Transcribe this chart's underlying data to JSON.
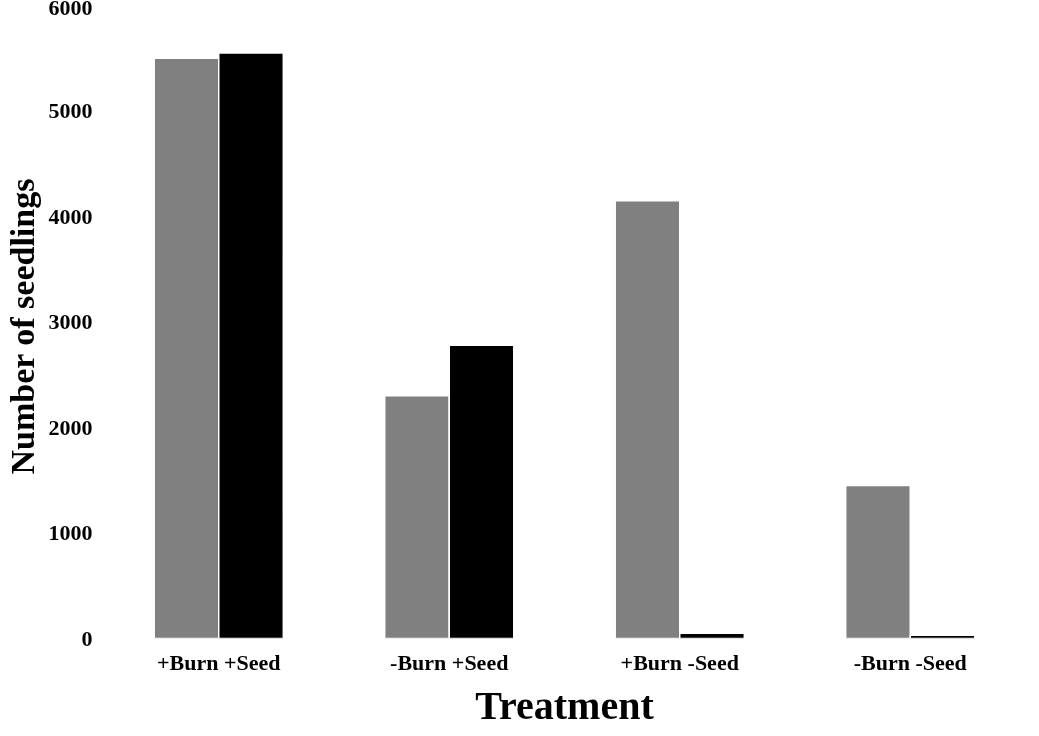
{
  "chart_data": {
    "type": "bar",
    "xlabel": "Treatment",
    "ylabel": "Number of  seedlings",
    "categories": [
      "+Burn +Seed",
      "-Burn +Seed",
      "+Burn -Seed",
      "-Burn -Seed"
    ],
    "series": [
      {
        "color": "#808080",
        "values": [
          5500,
          2300,
          4150,
          1450
        ]
      },
      {
        "color": "#000000",
        "values": [
          5550,
          2780,
          50,
          30
        ]
      }
    ],
    "ylim": [
      0,
      6000
    ],
    "yticks": [
      0,
      1000,
      2000,
      3000,
      4000,
      5000,
      6000
    ],
    "grid": false
  }
}
